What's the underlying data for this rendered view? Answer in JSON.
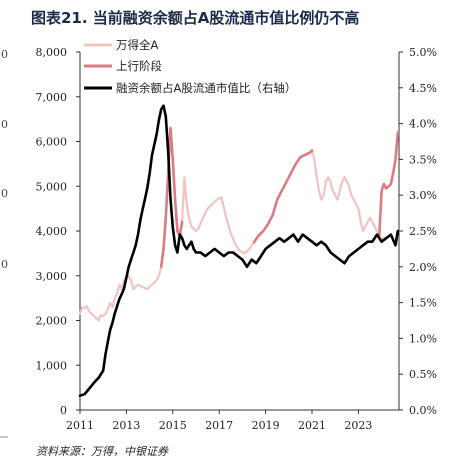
{
  "title": "图表21. 当前融资余额占A股流通市值比例仍不高",
  "source": "资料来源：万得，中银证券",
  "edge_fragments": [
    "0",
    "0",
    "0",
    "0"
  ],
  "chart_data": {
    "type": "line",
    "title": "图表21. 当前融资余额占A股流通市值比例仍不高",
    "xlabel": "",
    "ylabel": "",
    "x_ticks": [
      "2011",
      "2013",
      "2015",
      "2017",
      "2019",
      "2021",
      "2023"
    ],
    "x_range": [
      2011.0,
      2024.75
    ],
    "y_left": {
      "ticks": [
        "0",
        "1,000",
        "2,000",
        "3,000",
        "4,000",
        "5,000",
        "6,000",
        "7,000",
        "8,000"
      ],
      "range": [
        0,
        8000
      ]
    },
    "y_right": {
      "ticks": [
        "0.0%",
        "0.5%",
        "1.0%",
        "1.5%",
        "2.0%",
        "2.5%",
        "3.0%",
        "3.5%",
        "4.0%",
        "4.5%",
        "5.0%"
      ],
      "range": [
        0,
        5.0
      ]
    },
    "legend_position": "top-left",
    "grid": false,
    "series": [
      {
        "name": "万得全A",
        "axis": "left",
        "color": "#f2c4c1",
        "x": [
          2011.0,
          2011.1,
          2011.2,
          2011.3,
          2011.4,
          2011.5,
          2011.6,
          2011.7,
          2011.8,
          2011.9,
          2012.0,
          2012.1,
          2012.2,
          2012.3,
          2012.4,
          2012.5,
          2012.6,
          2012.7,
          2012.8,
          2012.9,
          2013.0,
          2013.1,
          2013.2,
          2013.3,
          2013.4,
          2013.5,
          2013.6,
          2013.7,
          2013.8,
          2013.9,
          2014.0,
          2014.1,
          2014.2,
          2014.3,
          2014.4,
          2014.5,
          2014.6,
          2014.7,
          2014.8,
          2014.9,
          2015.0,
          2015.1,
          2015.2,
          2015.3,
          2015.4,
          2015.5,
          2015.6,
          2015.7,
          2015.8,
          2015.9,
          2016.0,
          2016.1,
          2016.3,
          2016.5,
          2016.7,
          2016.9,
          2017.1,
          2017.3,
          2017.5,
          2017.7,
          2017.9,
          2018.1,
          2018.3,
          2018.5,
          2018.7,
          2018.9,
          2019.1,
          2019.3,
          2019.5,
          2019.7,
          2019.9,
          2020.1,
          2020.3,
          2020.5,
          2020.7,
          2020.9,
          2021.0,
          2021.1,
          2021.2,
          2021.3,
          2021.4,
          2021.5,
          2021.6,
          2021.7,
          2021.8,
          2021.9,
          2022.0,
          2022.1,
          2022.2,
          2022.3,
          2022.4,
          2022.5,
          2022.6,
          2022.7,
          2022.8,
          2022.9,
          2023.0,
          2023.1,
          2023.2,
          2023.3,
          2023.4,
          2023.5,
          2023.6,
          2023.7,
          2023.8,
          2023.9,
          2024.0,
          2024.1
        ],
        "y": [
          2150,
          2300,
          2280,
          2320,
          2200,
          2150,
          2100,
          2050,
          2000,
          2120,
          2100,
          2150,
          2250,
          2400,
          2300,
          2500,
          2600,
          2800,
          2700,
          2900,
          2950,
          3000,
          2900,
          2700,
          2750,
          2800,
          2780,
          2750,
          2720,
          2700,
          2750,
          2800,
          2850,
          2900,
          3000,
          3200,
          3600,
          4300,
          5300,
          6300,
          5600,
          4700,
          4000,
          3900,
          4200,
          5200,
          4600,
          4300,
          4100,
          4050,
          4000,
          4050,
          4300,
          4500,
          4600,
          4700,
          4750,
          4300,
          3950,
          3700,
          3550,
          3500,
          3600,
          3750,
          3900,
          4000,
          4150,
          4350,
          4700,
          4900,
          5100,
          5300,
          5500,
          5650,
          5700,
          5750,
          5800,
          5600,
          5200,
          4900,
          4700,
          4800,
          5100,
          5200,
          5100,
          4900,
          4800,
          4700,
          4900,
          5100,
          5200,
          5100,
          5000,
          4800,
          4700,
          4600,
          4500,
          4200,
          4000,
          4100,
          4200,
          4300,
          4200,
          4100,
          4000,
          3900,
          3800,
          3850
        ]
      },
      {
        "name": "上行阶段",
        "axis": "left",
        "color": "#db7b82",
        "segments": [
          {
            "x": [
              2014.5,
              2014.6,
              2014.7,
              2014.8,
              2014.9,
              2015.0,
              2015.1,
              2015.2,
              2015.3,
              2015.4
            ],
            "y": [
              3200,
              3600,
              4300,
              5300,
              6300,
              5600,
              4700,
              4000,
              3900,
              4200
            ]
          },
          {
            "x": [
              2018.5,
              2018.7,
              2018.9,
              2019.1,
              2019.3,
              2019.5,
              2019.7,
              2019.9,
              2020.1,
              2020.3,
              2020.5,
              2020.7,
              2020.9,
              2021.0
            ],
            "y": [
              3750,
              3900,
              4000,
              4150,
              4350,
              4700,
              4900,
              5100,
              5300,
              5500,
              5650,
              5700,
              5750,
              5800
            ]
          },
          {
            "x": [
              2023.9,
              2024.0,
              2024.1,
              2024.2,
              2024.3,
              2024.4,
              2024.5,
              2024.6,
              2024.7
            ],
            "y": [
              3900,
              4900,
              5050,
              4950,
              5000,
              5050,
              5300,
              5600,
              6200
            ]
          }
        ]
      },
      {
        "name": "融资余额占A股流通市值比（右轴）",
        "axis": "right",
        "color": "#000000",
        "x": [
          2011.0,
          2011.2,
          2011.4,
          2011.6,
          2011.8,
          2012.0,
          2012.1,
          2012.2,
          2012.3,
          2012.4,
          2012.5,
          2012.6,
          2012.7,
          2012.8,
          2012.9,
          2013.0,
          2013.1,
          2013.2,
          2013.3,
          2013.4,
          2013.5,
          2013.6,
          2013.7,
          2013.8,
          2013.9,
          2014.0,
          2014.1,
          2014.2,
          2014.3,
          2014.4,
          2014.5,
          2014.6,
          2014.7,
          2014.8,
          2014.9,
          2015.0,
          2015.1,
          2015.2,
          2015.3,
          2015.4,
          2015.5,
          2015.6,
          2015.7,
          2015.8,
          2015.9,
          2016.0,
          2016.2,
          2016.4,
          2016.6,
          2016.8,
          2017.0,
          2017.2,
          2017.4,
          2017.6,
          2017.8,
          2018.0,
          2018.2,
          2018.4,
          2018.6,
          2018.8,
          2019.0,
          2019.2,
          2019.4,
          2019.6,
          2019.8,
          2020.0,
          2020.2,
          2020.4,
          2020.6,
          2020.8,
          2021.0,
          2021.2,
          2021.4,
          2021.6,
          2021.8,
          2022.0,
          2022.2,
          2022.4,
          2022.6,
          2022.8,
          2023.0,
          2023.2,
          2023.4,
          2023.6,
          2023.8,
          2024.0,
          2024.2,
          2024.4,
          2024.6,
          2024.7
        ],
        "y": [
          0.2,
          0.22,
          0.3,
          0.38,
          0.45,
          0.55,
          0.78,
          0.95,
          1.12,
          1.22,
          1.35,
          1.45,
          1.55,
          1.62,
          1.7,
          1.85,
          2.0,
          2.1,
          2.2,
          2.3,
          2.45,
          2.65,
          2.8,
          2.95,
          3.1,
          3.3,
          3.55,
          3.7,
          3.85,
          4.05,
          4.2,
          4.25,
          4.1,
          3.6,
          2.95,
          2.55,
          2.3,
          2.2,
          2.45,
          2.4,
          2.3,
          2.25,
          2.3,
          2.35,
          2.25,
          2.2,
          2.2,
          2.15,
          2.2,
          2.25,
          2.2,
          2.15,
          2.2,
          2.2,
          2.15,
          2.1,
          2.0,
          2.1,
          2.05,
          2.15,
          2.25,
          2.3,
          2.35,
          2.4,
          2.35,
          2.4,
          2.45,
          2.35,
          2.45,
          2.4,
          2.35,
          2.3,
          2.35,
          2.3,
          2.2,
          2.15,
          2.1,
          2.05,
          2.15,
          2.2,
          2.25,
          2.3,
          2.35,
          2.35,
          2.45,
          2.35,
          2.4,
          2.45,
          2.3,
          2.5
        ]
      }
    ]
  }
}
